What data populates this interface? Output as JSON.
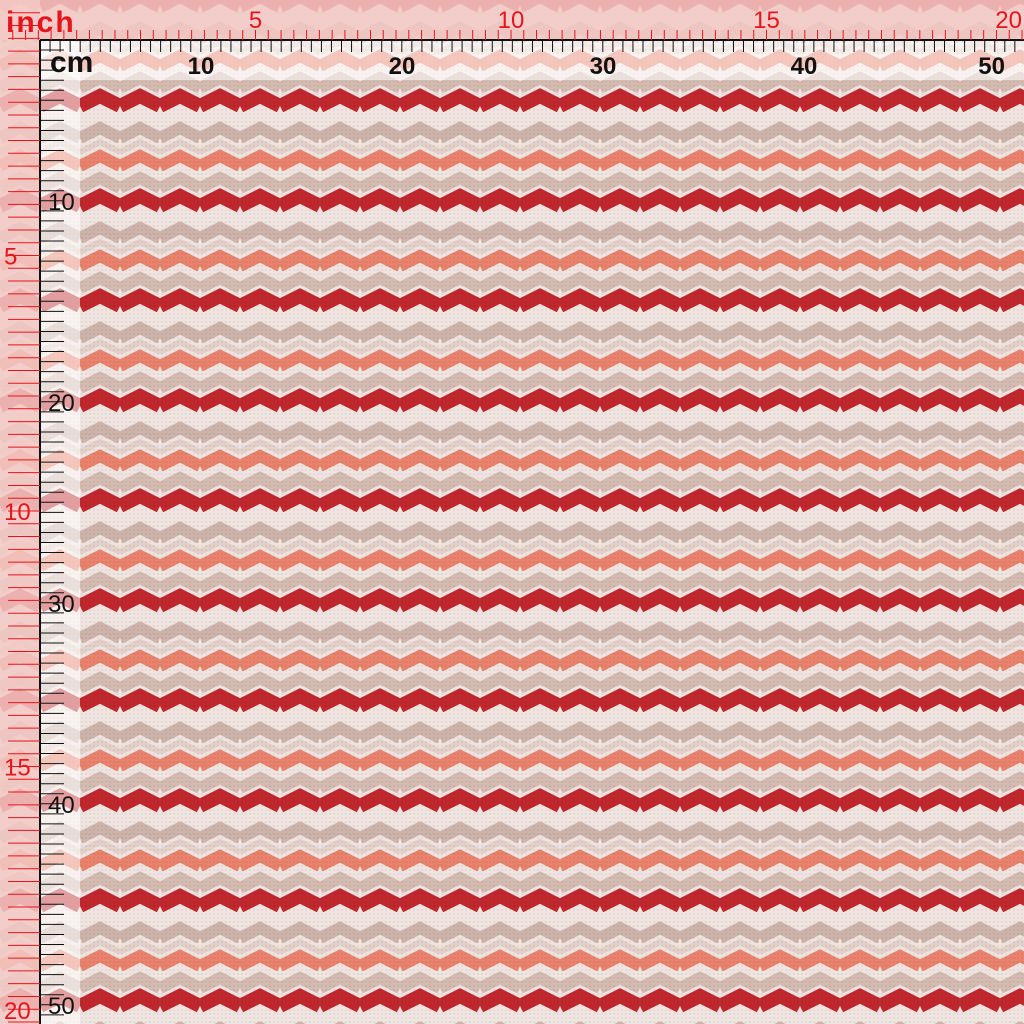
{
  "top_ruler": {
    "inch_unit": "inch",
    "cm_unit": "cm",
    "inch_labels": [
      5,
      10,
      15,
      20
    ],
    "cm_labels": [
      10,
      20,
      30,
      40,
      50
    ]
  },
  "left_ruler": {
    "inch_labels": [
      5,
      10,
      15,
      20
    ],
    "cm_labels": [
      10,
      20,
      30,
      40,
      50
    ]
  }
}
